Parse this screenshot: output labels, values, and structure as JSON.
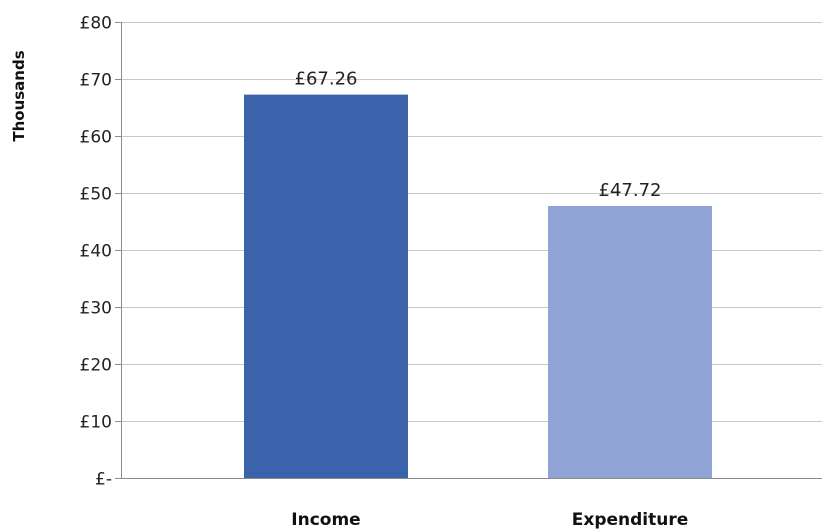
{
  "chart_data": {
    "type": "bar",
    "title": "",
    "xlabel": "",
    "ylabel": "Thousands",
    "categories": [
      "Income",
      "Expenditure"
    ],
    "values": [
      67.26,
      47.72
    ],
    "data_labels": [
      "£67.26",
      "£47.72"
    ],
    "bar_colors": [
      "#3a63ac",
      "#8fa4d4"
    ],
    "ylim": [
      0,
      80
    ],
    "y_ticks": [
      0,
      10,
      20,
      30,
      40,
      50,
      60,
      70,
      80
    ],
    "y_tick_labels": [
      "£-",
      "£10",
      "£20",
      "£30",
      "£40",
      "£50",
      "£60",
      "£70",
      "£80"
    ],
    "grid": true,
    "legend": "none"
  }
}
